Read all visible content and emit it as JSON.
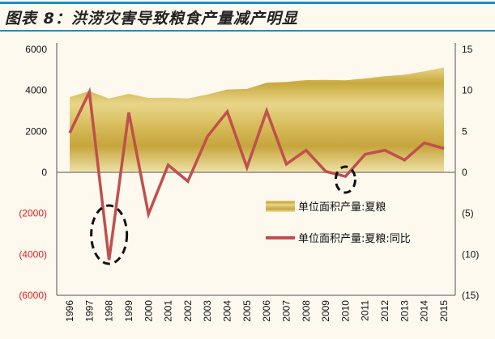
{
  "title": "图表 8：洪涝灾害导致粮食产量减产明显",
  "chart_data": {
    "type": "area+line",
    "title": "图表 8：洪涝灾害导致粮食产量减产明显",
    "categories": [
      "1996",
      "1997",
      "1998",
      "1999",
      "2000",
      "2001",
      "2002",
      "2003",
      "2004",
      "2005",
      "2006",
      "2007",
      "2008",
      "2009",
      "2010",
      "2011",
      "2012",
      "2013",
      "2014",
      "2015"
    ],
    "series": [
      {
        "name": "单位面积产量:夏粮",
        "type": "area",
        "axis": "left",
        "color": "#c9a93e",
        "values": [
          3670,
          3960,
          3600,
          3830,
          3630,
          3640,
          3600,
          3800,
          4040,
          4070,
          4370,
          4410,
          4500,
          4510,
          4490,
          4580,
          4690,
          4760,
          4930,
          5120
        ]
      },
      {
        "name": "单位面积产量:夏粮:同比",
        "type": "line",
        "axis": "right",
        "color": "#c0504d",
        "values": [
          4.8,
          9.8,
          -10.7,
          7.3,
          -5.1,
          0.9,
          -1.1,
          4.4,
          7.4,
          0.6,
          7.5,
          1.0,
          2.7,
          0.1,
          -0.5,
          2.2,
          2.7,
          1.5,
          3.6,
          2.9
        ]
      }
    ],
    "left_axis": {
      "range": [
        -6000,
        6000
      ],
      "ticks": [
        "6000",
        "4000",
        "2000",
        "0",
        "(2000)",
        "(4000)",
        "(6000)"
      ],
      "negative_color": "#e0201b"
    },
    "right_axis": {
      "range": [
        -15,
        15
      ],
      "ticks": [
        "15",
        "10",
        "5",
        "0",
        "(5)",
        "(10)",
        "(15)"
      ]
    },
    "highlights": [
      "1998",
      "2010"
    ],
    "legend": {
      "placement": "center-right"
    },
    "grid": false
  }
}
